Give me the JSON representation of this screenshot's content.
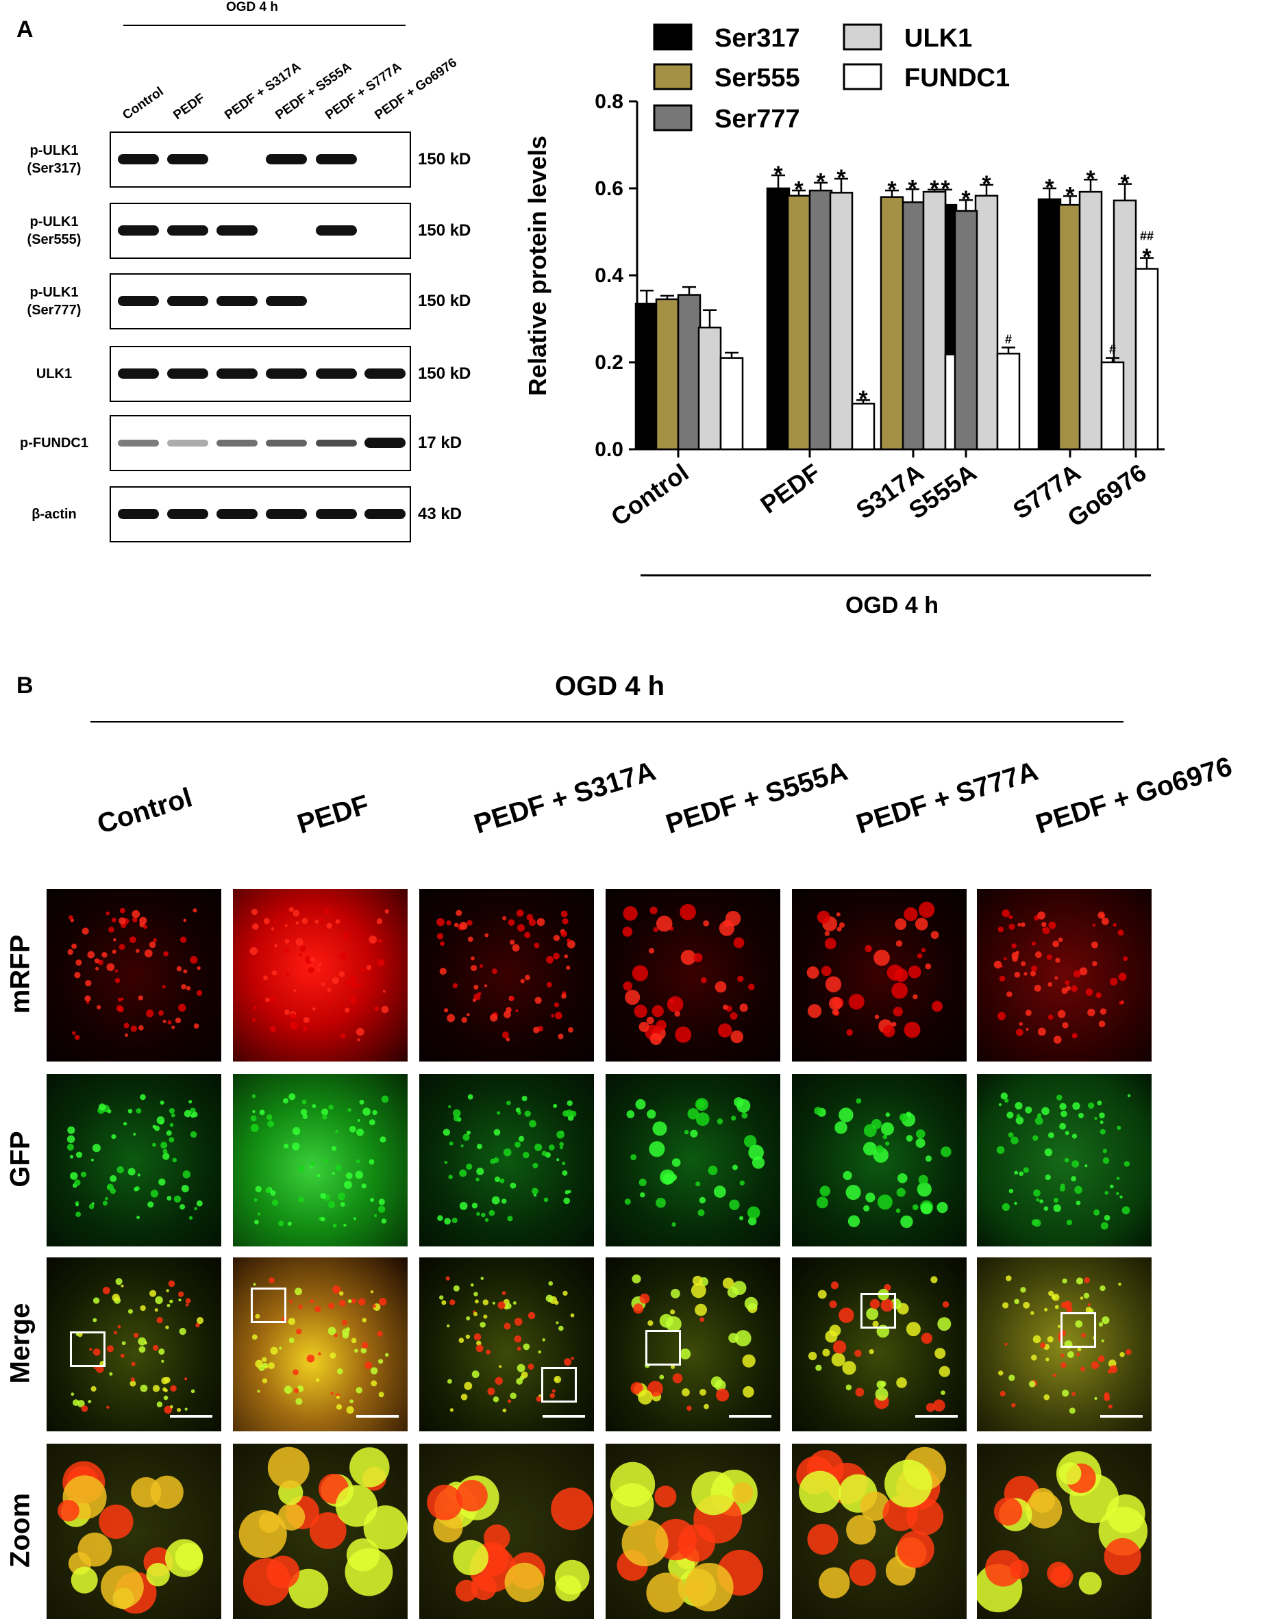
{
  "panel_a": {
    "label": "A",
    "ogd_label": "OGD 4 h",
    "lanes": [
      "Control",
      "PEDF",
      "PEDF + S317A",
      "PEDF + S555A",
      "PEDF + S777A",
      "PEDF + Go6976"
    ],
    "blots": [
      {
        "label_line1": "p-ULK1",
        "label_line2": "(Ser317)",
        "kd": "150 kD",
        "bands": [
          1,
          1,
          0,
          1,
          1,
          0
        ]
      },
      {
        "label_line1": "p-ULK1",
        "label_line2": "(Ser555)",
        "kd": "150 kD",
        "bands": [
          1,
          1,
          1,
          0,
          1,
          0
        ]
      },
      {
        "label_line1": "p-ULK1",
        "label_line2": "(Ser777)",
        "kd": "150 kD",
        "bands": [
          1,
          1,
          1,
          1,
          0,
          0
        ]
      },
      {
        "label_line1": "ULK1",
        "label_line2": "",
        "kd": "150 kD",
        "bands": [
          1,
          1,
          1,
          1,
          1,
          1
        ]
      },
      {
        "label_line1": "p-FUNDC1",
        "label_line2": "",
        "kd": "17 kD",
        "bands": [
          0.55,
          0.35,
          0.6,
          0.65,
          0.75,
          1
        ]
      },
      {
        "label_line1": "β-actin",
        "label_line2": "",
        "kd": "43 kD",
        "bands": [
          1,
          1,
          1,
          1,
          1,
          1
        ]
      }
    ]
  },
  "chart_data": {
    "type": "bar",
    "ylabel": "Relative protein levels",
    "xlabel": "OGD 4 h",
    "ylim": [
      0,
      0.8
    ],
    "yticks": [
      "0.0",
      "0.2",
      "0.4",
      "0.6",
      "0.8"
    ],
    "legend_position": "top",
    "categories": [
      "Control",
      "PEDF",
      "S317A",
      "S555A",
      "S777A",
      "Go6976"
    ],
    "series": [
      {
        "name": "Ser317",
        "color": "#000000",
        "values": [
          0.335,
          0.6,
          0.58,
          0.562,
          0.575,
          null
        ],
        "errors": [
          0.03,
          0.03,
          0.015,
          0.035,
          0.025,
          null
        ],
        "marks": [
          "",
          "*",
          "*",
          "*",
          "*",
          ""
        ]
      },
      {
        "name": "Ser555",
        "color": "#a59145",
        "values": [
          0.345,
          0.583,
          null,
          0.548,
          0.562,
          null
        ],
        "errors": [
          0.008,
          0.012,
          null,
          0.025,
          0.02,
          null
        ],
        "marks": [
          "",
          "*",
          "",
          "*",
          "*",
          ""
        ]
      },
      {
        "name": "Ser777",
        "color": "#777777",
        "values": [
          0.355,
          0.595,
          0.568,
          null,
          null,
          null
        ],
        "errors": [
          0.018,
          0.018,
          0.03,
          null,
          null,
          null
        ],
        "marks": [
          "",
          "*",
          "*",
          "",
          "",
          ""
        ]
      },
      {
        "name": "ULK1",
        "color": "#d3d3d3",
        "values": [
          0.28,
          0.59,
          0.592,
          0.583,
          0.592,
          0.572
        ],
        "errors": [
          0.04,
          0.032,
          0.005,
          0.025,
          0.028,
          0.038
        ],
        "marks": [
          "",
          "*",
          "*",
          "*",
          "*",
          "*"
        ]
      },
      {
        "name": "FUNDC1",
        "color": "#ffffff",
        "values": [
          0.21,
          0.105,
          0.218,
          0.22,
          0.2,
          0.415
        ],
        "errors": [
          0.012,
          0.008,
          0.018,
          0.014,
          0.01,
          0.025
        ],
        "marks": [
          "",
          "*",
          "#",
          "#",
          "#",
          "*"
        ],
        "extra_marks": [
          "",
          "",
          "",
          "",
          "",
          "##"
        ]
      }
    ]
  },
  "panel_b": {
    "label": "B",
    "ogd_label": "OGD 4 h",
    "columns": [
      "Control",
      "PEDF",
      "PEDF + S317A",
      "PEDF + S555A",
      "PEDF + S777A",
      "PEDF + Go6976"
    ],
    "rows": [
      "mRFP",
      "GFP",
      "Merge",
      "Zoom"
    ]
  }
}
